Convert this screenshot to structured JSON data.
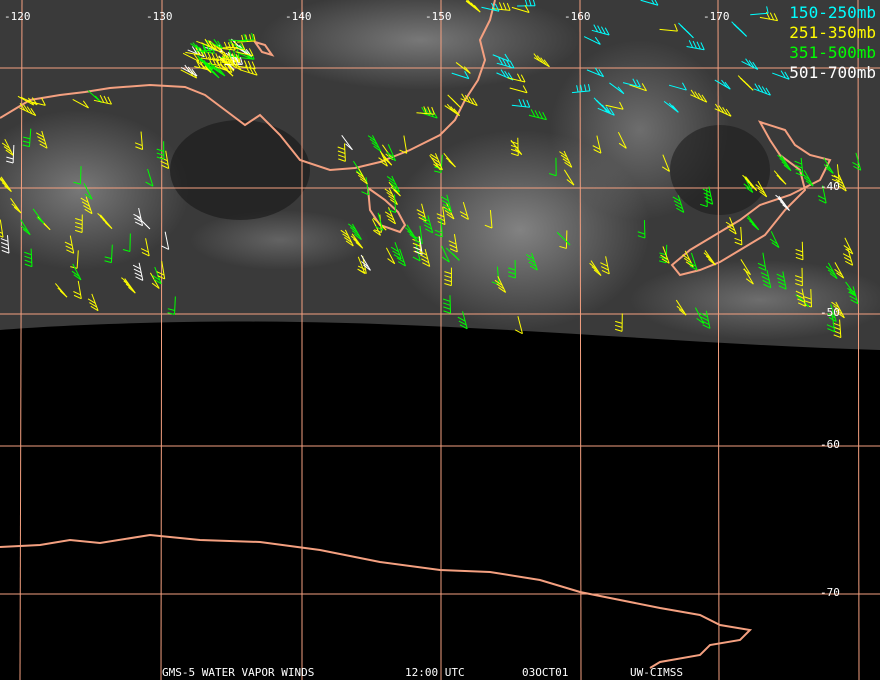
{
  "grid": {
    "longitudes": [
      "-120",
      "-130",
      "-140",
      "-150",
      "-160",
      "-170"
    ],
    "latitudes": [
      "-40",
      "-50",
      "-60",
      "-70"
    ]
  },
  "legend": [
    {
      "label": "150-250mb",
      "color": "#00ffff"
    },
    {
      "label": "251-350mb",
      "color": "#ffff00"
    },
    {
      "label": "351-500mb",
      "color": "#00ff00"
    },
    {
      "label": "501-700mb",
      "color": "#ffffff"
    }
  ],
  "footer": {
    "product": "GMS-5 WATER VAPOR WINDS",
    "time": "12:00 UTC",
    "date": "03OCT01",
    "source": "UW-CIMSS"
  }
}
